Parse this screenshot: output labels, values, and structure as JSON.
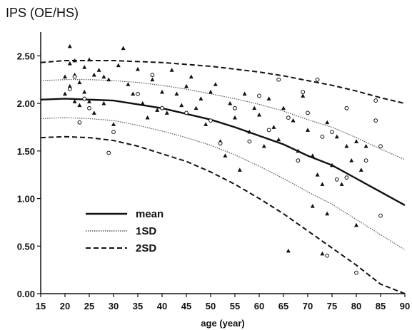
{
  "chart_data": {
    "type": "scatter",
    "ylabel": "IPS (OE/HS)",
    "xlabel": "age (year)",
    "xlim": [
      15,
      90
    ],
    "ylim": [
      0,
      2.75
    ],
    "xticks": [
      "15",
      "20",
      "25",
      "30",
      "35",
      "40",
      "45",
      "50",
      "55",
      "60",
      "65",
      "70",
      "75",
      "80",
      "85",
      "90"
    ],
    "yticks": [
      "0.00",
      "0.50",
      "1.00",
      "1.50",
      "2.00",
      "2.50"
    ],
    "grid": false,
    "legend_position": "bottom-left",
    "legend": [
      {
        "label": "mean",
        "style": "solid"
      },
      {
        "label": "1SD",
        "style": "dotted"
      },
      {
        "label": "2SD",
        "style": "dashed"
      }
    ],
    "curves": {
      "mean_formula": "2.05 - 0.00025*(age-20)^2 (approx.)",
      "x": [
        15,
        20,
        25,
        30,
        35,
        40,
        45,
        50,
        55,
        60,
        65,
        70,
        75,
        80,
        85,
        90
      ],
      "mean": [
        2.04,
        2.05,
        2.04,
        2.03,
        1.99,
        1.95,
        1.89,
        1.83,
        1.75,
        1.66,
        1.57,
        1.45,
        1.35,
        1.21,
        1.07,
        0.93
      ],
      "plus1sd": [
        2.24,
        2.25,
        2.25,
        2.24,
        2.22,
        2.19,
        2.15,
        2.1,
        2.05,
        1.99,
        1.92,
        1.83,
        1.75,
        1.64,
        1.52,
        1.41
      ],
      "minus1sd": [
        1.84,
        1.85,
        1.84,
        1.82,
        1.77,
        1.71,
        1.64,
        1.56,
        1.46,
        1.34,
        1.21,
        1.07,
        0.94,
        0.78,
        0.62,
        0.46
      ],
      "plus2sd": [
        2.43,
        2.45,
        2.45,
        2.45,
        2.44,
        2.43,
        2.41,
        2.39,
        2.36,
        2.33,
        2.29,
        2.24,
        2.19,
        2.13,
        2.06,
        2.0
      ],
      "minus2sd": [
        1.64,
        1.65,
        1.64,
        1.61,
        1.55,
        1.47,
        1.39,
        1.28,
        1.15,
        1.0,
        0.84,
        0.66,
        0.48,
        0.3,
        0.1,
        -0.1
      ]
    },
    "series": [
      {
        "marker": "filled-triangle",
        "points": [
          [
            20,
            2.28
          ],
          [
            20,
            2.1
          ],
          [
            21,
            2.6
          ],
          [
            21,
            2.42
          ],
          [
            21,
            2.18
          ],
          [
            22,
            2.45
          ],
          [
            22,
            2.3
          ],
          [
            22,
            2.02
          ],
          [
            23,
            2.22
          ],
          [
            23,
            1.98
          ],
          [
            24,
            2.38
          ],
          [
            24,
            2.12
          ],
          [
            25,
            2.46
          ],
          [
            25,
            2.02
          ],
          [
            26,
            2.3
          ],
          [
            26,
            1.9
          ],
          [
            27,
            2.35
          ],
          [
            28,
            2.28
          ],
          [
            28,
            2.0
          ],
          [
            29,
            2.25
          ],
          [
            30,
            1.78
          ],
          [
            31,
            2.4
          ],
          [
            32,
            2.58
          ],
          [
            33,
            2.2
          ],
          [
            34,
            2.1
          ],
          [
            35,
            2.36
          ],
          [
            36,
            2.0
          ],
          [
            37,
            1.85
          ],
          [
            38,
            2.25
          ],
          [
            39,
            1.93
          ],
          [
            40,
            2.12
          ],
          [
            41,
            1.9
          ],
          [
            42,
            2.35
          ],
          [
            43,
            2.1
          ],
          [
            44,
            1.98
          ],
          [
            45,
            2.18
          ],
          [
            46,
            2.28
          ],
          [
            47,
            1.95
          ],
          [
            48,
            2.05
          ],
          [
            49,
            1.78
          ],
          [
            50,
            2.12
          ],
          [
            51,
            2.2
          ],
          [
            52,
            1.6
          ],
          [
            53,
            1.45
          ],
          [
            54,
            2.0
          ],
          [
            55,
            1.85
          ],
          [
            56,
            1.3
          ],
          [
            57,
            2.1
          ],
          [
            58,
            1.7
          ],
          [
            59,
            1.95
          ],
          [
            60,
            1.88
          ],
          [
            61,
            1.55
          ],
          [
            62,
            2.05
          ],
          [
            63,
            1.75
          ],
          [
            64,
            1.62
          ],
          [
            65,
            1.95
          ],
          [
            66,
            0.45
          ],
          [
            67,
            1.82
          ],
          [
            68,
            1.5
          ],
          [
            69,
            2.08
          ],
          [
            70,
            1.72
          ],
          [
            71,
            1.45
          ],
          [
            72,
            1.25
          ],
          [
            73,
            0.42
          ],
          [
            74,
            1.8
          ],
          [
            75,
            1.35
          ],
          [
            76,
            1.65
          ],
          [
            77,
            1.15
          ],
          [
            78,
            1.55
          ],
          [
            79,
            1.4
          ],
          [
            80,
            1.6
          ],
          [
            81,
            1.3
          ],
          [
            82,
            1.55
          ],
          [
            73,
            1.15
          ],
          [
            71,
            0.92
          ],
          [
            80,
            0.72
          ],
          [
            74,
            0.84
          ]
        ]
      },
      {
        "marker": "open-circle",
        "points": [
          [
            21,
            2.15
          ],
          [
            22,
            2.28
          ],
          [
            23,
            1.8
          ],
          [
            24,
            2.05
          ],
          [
            25,
            1.95
          ],
          [
            29,
            1.48
          ],
          [
            30,
            1.7
          ],
          [
            35,
            2.1
          ],
          [
            38,
            2.3
          ],
          [
            40,
            1.95
          ],
          [
            45,
            1.9
          ],
          [
            50,
            1.82
          ],
          [
            52,
            1.58
          ],
          [
            55,
            1.95
          ],
          [
            58,
            1.6
          ],
          [
            60,
            2.08
          ],
          [
            62,
            1.72
          ],
          [
            64,
            2.25
          ],
          [
            66,
            1.85
          ],
          [
            68,
            1.4
          ],
          [
            70,
            1.9
          ],
          [
            72,
            2.25
          ],
          [
            74,
            0.4
          ],
          [
            75,
            1.7
          ],
          [
            76,
            1.2
          ],
          [
            78,
            1.22
          ],
          [
            80,
            0.22
          ],
          [
            82,
            1.4
          ],
          [
            84,
            2.03
          ],
          [
            84,
            1.82
          ],
          [
            85,
            1.55
          ],
          [
            85,
            0.82
          ],
          [
            78,
            1.95
          ],
          [
            73,
            1.65
          ],
          [
            69,
            2.12
          ]
        ]
      }
    ]
  }
}
